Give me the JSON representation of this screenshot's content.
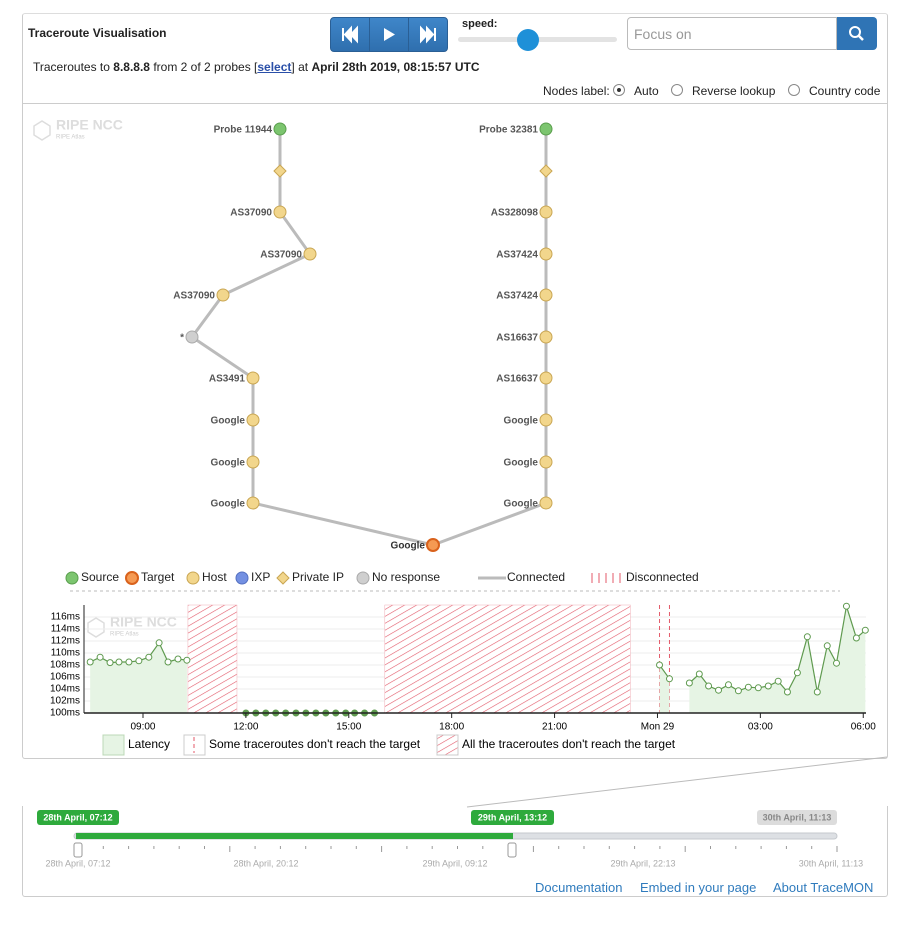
{
  "header": {
    "title": "Traceroute Visualisation",
    "speed_label": "speed:",
    "search_placeholder": "Focus on"
  },
  "info": {
    "prefix": "Traceroutes to",
    "target": "8.8.8.8",
    "probes": "from 2 of 2 probes [",
    "select": "select",
    "at": "] at",
    "time": "April 28th 2019, 08:15:57 UTC"
  },
  "nodes_label": {
    "label": "Nodes label:",
    "options": [
      "Auto",
      "Reverse lookup",
      "Country code"
    ],
    "selected": 0
  },
  "watermark": {
    "name": "RIPE NCC",
    "sub": "RIPE Atlas"
  },
  "graph": {
    "paths": [
      {
        "nodes": [
          {
            "label": "Probe 11944",
            "type": "source"
          },
          {
            "type": "private"
          },
          {
            "label": "AS37090",
            "type": "host"
          },
          {
            "label": "AS37090",
            "type": "host"
          },
          {
            "label": "AS37090",
            "type": "host"
          },
          {
            "label": "*",
            "type": "noresponse"
          },
          {
            "label": "AS3491",
            "type": "host"
          },
          {
            "label": "Google",
            "type": "host"
          },
          {
            "label": "Google",
            "type": "host"
          },
          {
            "label": "Google",
            "type": "host"
          }
        ]
      },
      {
        "nodes": [
          {
            "label": "Probe 32381",
            "type": "source"
          },
          {
            "type": "private"
          },
          {
            "label": "AS328098",
            "type": "host"
          },
          {
            "label": "AS37424",
            "type": "host"
          },
          {
            "label": "AS37424",
            "type": "host"
          },
          {
            "label": "AS16637",
            "type": "host"
          },
          {
            "label": "AS16637",
            "type": "host"
          },
          {
            "label": "Google",
            "type": "host"
          },
          {
            "label": "Google",
            "type": "host"
          },
          {
            "label": "Google",
            "type": "host"
          }
        ]
      }
    ],
    "target": {
      "label": "Google",
      "type": "target"
    }
  },
  "legend": {
    "items": [
      {
        "label": "Source",
        "type": "source"
      },
      {
        "label": "Target",
        "type": "target"
      },
      {
        "label": "Host",
        "type": "host"
      },
      {
        "label": "IXP",
        "type": "ixp"
      },
      {
        "label": "Private IP",
        "type": "private"
      },
      {
        "label": "No response",
        "type": "noresponse"
      },
      {
        "label": "Connected",
        "type": "connected"
      },
      {
        "label": "Disconnected",
        "type": "disconnected"
      }
    ]
  },
  "latency_chart": {
    "type": "line",
    "color": "#5f9a4f",
    "fill": "#e6f4e4",
    "x": [
      7.46,
      7.75,
      8.04,
      8.3,
      8.59,
      8.88,
      9.17,
      9.47,
      9.73,
      10.02,
      10.28,
      null,
      12.0,
      12.29,
      12.58,
      12.87,
      13.16,
      13.46,
      13.75,
      14.04,
      14.33,
      14.62,
      14.91,
      15.17,
      15.46,
      15.75,
      null,
      24.06,
      24.35,
      null,
      24.93,
      25.22,
      25.49,
      25.78,
      26.07,
      26.36,
      26.65,
      26.94,
      27.23,
      27.52,
      27.79,
      28.08,
      28.37,
      28.66,
      28.95,
      29.22,
      29.51,
      29.8,
      30.06
    ],
    "values": [
      108.5,
      109.3,
      108.4,
      108.5,
      108.5,
      108.7,
      109.3,
      111.7,
      108.5,
      109,
      108.8,
      null,
      100,
      100,
      100,
      100,
      100,
      100,
      100,
      100,
      100,
      100,
      100,
      100,
      100,
      100,
      null,
      108,
      105.7,
      null,
      105,
      106.5,
      104.5,
      103.8,
      104.7,
      103.7,
      104.3,
      104.2,
      104.5,
      105.3,
      103.5,
      106.7,
      112.7,
      103.5,
      111.2,
      108.3,
      117.8,
      112.5,
      113.8
    ],
    "disconnected": [
      [
        10.31,
        11.74
      ],
      [
        16.05,
        23.21
      ]
    ],
    "partial": [
      24.06,
      24.35
    ],
    "xlim": [
      7.28,
      30.08
    ],
    "ylim": [
      100,
      118
    ],
    "xticks": [
      {
        "value": 9,
        "label": "09:00"
      },
      {
        "value": 12,
        "label": "12:00"
      },
      {
        "value": 15,
        "label": "15:00"
      },
      {
        "value": 18,
        "label": "18:00"
      },
      {
        "value": 21,
        "label": "21:00"
      },
      {
        "value": 24,
        "label": "Mon 29"
      },
      {
        "value": 27,
        "label": "03:00"
      },
      {
        "value": 30,
        "label": "06:00"
      }
    ],
    "yticks": [
      {
        "value": 100,
        "label": "100ms"
      },
      {
        "value": 102,
        "label": "102ms"
      },
      {
        "value": 104,
        "label": "104ms"
      },
      {
        "value": 106,
        "label": "106ms"
      },
      {
        "value": 108,
        "label": "108ms"
      },
      {
        "value": 110,
        "label": "110ms"
      },
      {
        "value": 112,
        "label": "112ms"
      },
      {
        "value": 114,
        "label": "114ms"
      },
      {
        "value": 116,
        "label": "116ms"
      }
    ],
    "grid": true,
    "legend": [
      "Latency",
      "Some traceroutes don't reach the target",
      "All the traceroutes don't reach the target"
    ]
  },
  "timeline": {
    "start": "28th April, 07:12",
    "selected_end": "29th April, 13:12",
    "end": "30th April, 11:13",
    "ticks": [
      "28th April, 07:12",
      "28th April, 20:12",
      "29th April, 09:12",
      "29th April, 22:13",
      "30th April, 11:13"
    ]
  },
  "footer": {
    "links": [
      "Documentation",
      "Embed in your page",
      "About TraceMON"
    ]
  }
}
